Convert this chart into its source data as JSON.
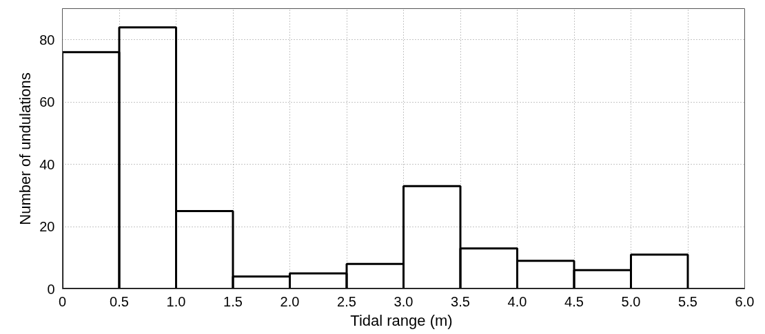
{
  "chart_data": {
    "type": "histogram",
    "xlabel": "Tidal range  (m)",
    "ylabel": "Number of undulations",
    "bins": [
      0,
      0.5,
      1,
      1.5,
      2,
      2.5,
      3,
      3.5,
      4,
      4.5,
      5,
      5.5,
      6
    ],
    "values": [
      76,
      84,
      25,
      4,
      5,
      8,
      33,
      13,
      9,
      6,
      11,
      0
    ],
    "color": "#000000",
    "xlim": [
      0,
      6
    ],
    "ylim": [
      0,
      90
    ],
    "xticks": [
      0,
      0.5,
      {
        "value": 1,
        "label": "1.0"
      },
      1.5,
      {
        "value": 2,
        "label": "2.0"
      },
      2.5,
      {
        "value": 3,
        "label": "3.0"
      },
      3.5,
      {
        "value": 4,
        "label": "4.0"
      },
      4.5,
      {
        "value": 5,
        "label": "5.0"
      },
      5.5,
      {
        "value": 6,
        "label": "6.0"
      }
    ],
    "yticks": [
      0,
      20,
      40,
      60,
      80
    ],
    "grid": true
  }
}
